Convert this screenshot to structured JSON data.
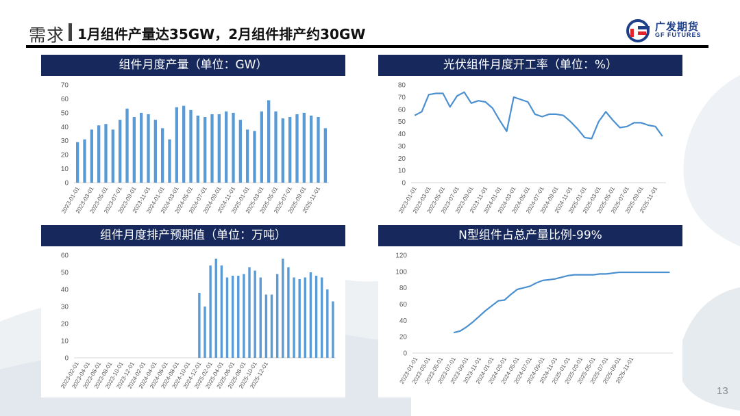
{
  "header": {
    "section": "需求",
    "title": "1月组件产量达35GW，2月组件排产约30GW"
  },
  "logo": {
    "name": "广发期货",
    "name_en": "GF FUTURES"
  },
  "page_number": "13",
  "colors": {
    "panel_bg": "#17295c",
    "series": "#5b9bd5",
    "line": "#4a8fcf",
    "axis_text": "#595959"
  },
  "charts": [
    {
      "panel_title": "组件月度产量（单位：GW）",
      "chart_data": {
        "type": "bar",
        "title": "组件月度产量（单位：GW）",
        "ylim": [
          0,
          70
        ],
        "yticks": [
          0,
          10,
          20,
          30,
          40,
          50,
          60,
          70
        ],
        "tick_labels": [
          "2023-01-01",
          "2023-03-01",
          "2023-05-01",
          "2023-07-01",
          "2023-09-01",
          "2023-11-01",
          "2024-01-01",
          "2024-03-01",
          "2024-05-01",
          "2024-07-01",
          "2024-09-01",
          "2024-11-01",
          "2025-01-01",
          "2025-03-01",
          "2025-05-01",
          "2025-07-01",
          "2025-09-01",
          "2025-11-01"
        ],
        "values": [
          29,
          31,
          38,
          41,
          42,
          38,
          45,
          53,
          47,
          50,
          49,
          45,
          39,
          31,
          54,
          55,
          52,
          48,
          47,
          49,
          49,
          51,
          50,
          45,
          38,
          37,
          51,
          59,
          51,
          46,
          47,
          49,
          50,
          48,
          47,
          39
        ]
      }
    },
    {
      "panel_title": "光伏组件月度开工率（单位：%）",
      "chart_data": {
        "type": "line",
        "title": "光伏组件月度开工率（单位：%）",
        "ylim": [
          0,
          80
        ],
        "yticks": [
          0,
          10,
          20,
          30,
          40,
          50,
          60,
          70,
          80
        ],
        "tick_labels": [
          "2023-01-01",
          "2023-03-01",
          "2023-05-01",
          "2023-07-01",
          "2023-09-01",
          "2023-11-01",
          "2024-01-01",
          "2024-03-01",
          "2024-05-01",
          "2024-07-01",
          "2024-09-01",
          "2024-11-01",
          "2025-01-01",
          "2025-03-01",
          "2025-05-01",
          "2025-07-01",
          "2025-09-01",
          "2025-11-01"
        ],
        "values": [
          55,
          58,
          72,
          73,
          73,
          62,
          71,
          74,
          65,
          67,
          66,
          61,
          51,
          42,
          70,
          68,
          66,
          56,
          54,
          56,
          56,
          55,
          50,
          44,
          37,
          36,
          50,
          58,
          51,
          45,
          46,
          49,
          49,
          47,
          46,
          38
        ]
      }
    },
    {
      "panel_title": "组件月度排产预期值（单位：万吨）",
      "chart_data": {
        "type": "bar",
        "title": "组件月度排产预期值（单位：万吨）",
        "ylim": [
          0,
          60
        ],
        "yticks": [
          0,
          10,
          20,
          30,
          40,
          50,
          60
        ],
        "tick_labels": [
          "2023-02-01",
          "2023-04-01",
          "2023-06-01",
          "2023-08-01",
          "2023-10-01",
          "2023-12-01",
          "2024-02-01",
          "2024-04-01",
          "2024-06-01",
          "2024-08-01",
          "2024-10-01",
          "2024-12-01",
          "2025-02-01",
          "2025-04-01",
          "2025-06-01",
          "2025-08-01",
          "2025-10-01",
          "2025-12-01"
        ],
        "values": [
          0,
          0,
          0,
          0,
          0,
          0,
          0,
          0,
          0,
          0,
          0,
          0,
          0,
          0,
          0,
          0,
          0,
          0,
          0,
          0,
          0,
          0,
          38,
          30,
          54,
          58,
          54,
          47,
          48,
          48,
          49,
          53,
          51,
          47,
          37,
          37,
          49,
          58,
          53,
          47,
          46,
          47,
          50,
          48,
          47,
          40,
          33
        ]
      }
    },
    {
      "panel_title": "N型组件占总产量比例-99%",
      "chart_data": {
        "type": "line",
        "title": "N型组件占总产量比例-99%",
        "ylim": [
          0,
          120
        ],
        "yticks": [
          0,
          20,
          40,
          60,
          80,
          100,
          120
        ],
        "tick_labels": [
          "2023-01-01",
          "2023-03-01",
          "2023-05-01",
          "2023-07-01",
          "2023-09-01",
          "2023-11-01",
          "2024-01-01",
          "2024-03-01",
          "2024-05-01",
          "2024-07-01",
          "2024-09-01",
          "2024-11-01",
          "2025-01-01",
          "2025-03-01",
          "2025-05-01",
          "2025-07-01",
          "2025-09-01",
          "2025-11-01"
        ],
        "values": [
          null,
          null,
          null,
          null,
          null,
          null,
          25,
          27,
          32,
          38,
          45,
          52,
          58,
          64,
          65,
          72,
          78,
          80,
          82,
          86,
          89,
          90,
          91,
          93,
          95,
          96,
          96,
          96,
          96,
          97,
          97,
          98,
          99,
          99,
          99,
          99,
          99,
          99,
          99,
          99,
          99
        ]
      }
    }
  ]
}
